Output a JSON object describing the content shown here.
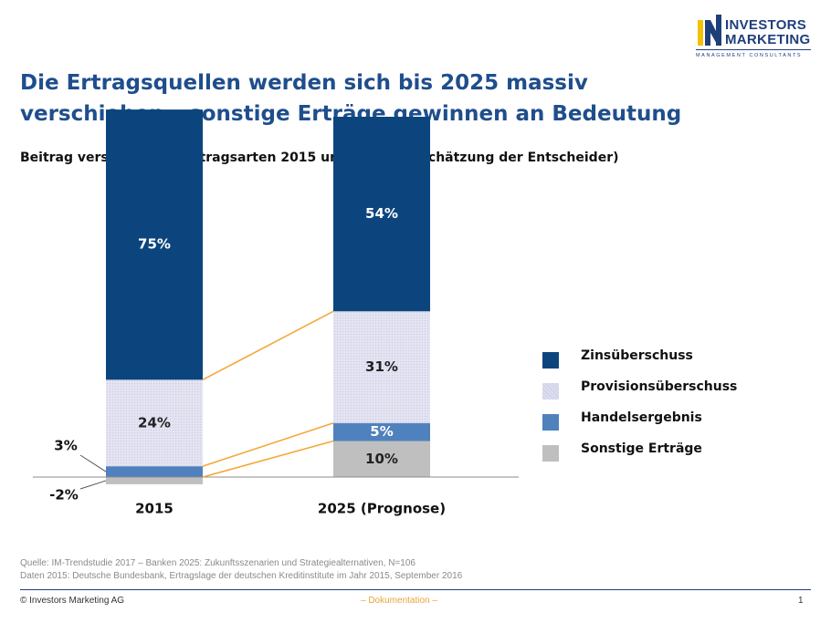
{
  "logo": {
    "line1": "INVESTORS",
    "line2": "MARKETING",
    "line3": "MANAGEMENT CONSULTANTS",
    "colors": {
      "navy": "#1f3f7a",
      "yellow": "#f2c200"
    }
  },
  "title": {
    "line1": "Die Ertragsquellen werden sich bis 2025 massiv",
    "line2": "verschieben – sonstige Erträge gewinnen an Bedeutung"
  },
  "subtitle": "Beitrag verschiedener Ertragsarten 2015 und 2025 (Einschätzung der Entscheider)",
  "chart_data": {
    "type": "bar",
    "stacked": true,
    "categories": [
      "2015",
      "2025 (Prognose)"
    ],
    "series": [
      {
        "name": "Sonstige Erträge",
        "values": [
          -2,
          10
        ],
        "labels": [
          "-2%",
          "10%"
        ],
        "color": "#bfbfbf"
      },
      {
        "name": "Handelsergebnis",
        "values": [
          3,
          5
        ],
        "labels": [
          "3%",
          "5%"
        ],
        "color": "#4f81bd"
      },
      {
        "name": "Provisionsüberschuss",
        "values": [
          24,
          31
        ],
        "labels": [
          "24%",
          "31%"
        ],
        "color": "#dcdcf0"
      },
      {
        "name": "Zinsüberschuss",
        "values": [
          75,
          54
        ],
        "labels": [
          "75%",
          "54%"
        ],
        "color": "#0c457e"
      }
    ],
    "connector_color": "#f4a838",
    "legend_position": "right",
    "grid": false
  },
  "legend": [
    {
      "label": "Zinsüberschuss",
      "color": "#0c457e"
    },
    {
      "label": "Provisionsüberschuss",
      "color": "#dcdcf0"
    },
    {
      "label": "Handelsergebnis",
      "color": "#4f81bd"
    },
    {
      "label": "Sonstige Erträge",
      "color": "#bfbfbf"
    }
  ],
  "source": {
    "line1": "Quelle: IM-Trendstudie 2017 – Banken 2025: Zukunftsszenarien und Strategiealternativen, N=106",
    "line2": "Daten 2015: Deutsche Bundesbank, Ertragslage der deutschen Kreditinstitute im Jahr 2015, September  2016"
  },
  "footer": {
    "copyright": "© Investors Marketing AG",
    "center": "– Dokumentation –",
    "page": "1"
  }
}
